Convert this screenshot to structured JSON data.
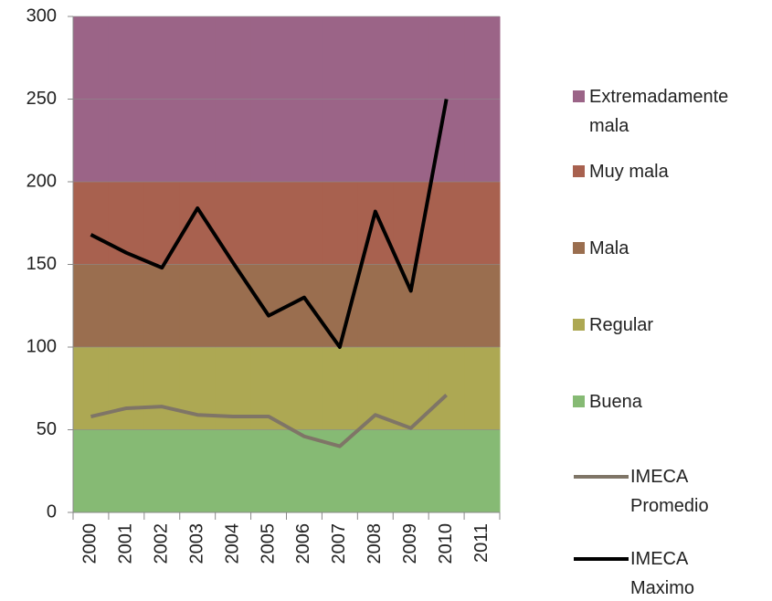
{
  "chart_data": {
    "type": "line",
    "categories": [
      "2000",
      "2001",
      "2002",
      "2003",
      "2004",
      "2005",
      "2006",
      "2007",
      "2008",
      "2009",
      "2010",
      "2011"
    ],
    "series": [
      {
        "name": "Buena",
        "type": "area",
        "color": "#86ba74",
        "values": [
          50,
          50,
          50,
          50,
          50,
          50,
          50,
          50,
          50,
          50,
          50,
          50
        ]
      },
      {
        "name": "Regular",
        "type": "area",
        "color": "#ada853",
        "values": [
          50,
          50,
          50,
          50,
          50,
          50,
          50,
          50,
          50,
          50,
          50,
          50
        ]
      },
      {
        "name": "Mala",
        "type": "area",
        "color": "#9a6e4f",
        "values": [
          50,
          50,
          50,
          50,
          50,
          50,
          50,
          50,
          50,
          50,
          50,
          50
        ]
      },
      {
        "name": "Muy mala",
        "type": "area",
        "color": "#a8614f",
        "values": [
          50,
          50,
          50,
          50,
          50,
          50,
          50,
          50,
          50,
          50,
          50,
          50
        ]
      },
      {
        "name": "Extremadamente mala",
        "type": "area",
        "color": "#9b6487",
        "values": [
          100,
          100,
          100,
          100,
          100,
          100,
          100,
          100,
          100,
          100,
          100,
          100
        ]
      },
      {
        "name": "IMECA Promedio",
        "type": "line",
        "color": "#7f7567",
        "values": [
          58,
          63,
          64,
          59,
          58,
          58,
          46,
          40,
          59,
          51,
          71,
          null
        ]
      },
      {
        "name": "IMECA Maximo",
        "type": "line",
        "color": "#000000",
        "values": [
          168,
          157,
          148,
          184,
          151,
          119,
          130,
          100,
          182,
          134,
          250,
          null
        ]
      }
    ],
    "ylim": [
      0,
      300
    ],
    "yticks": [
      0,
      50,
      100,
      150,
      200,
      250,
      300
    ],
    "grid": true,
    "legend": "right"
  }
}
